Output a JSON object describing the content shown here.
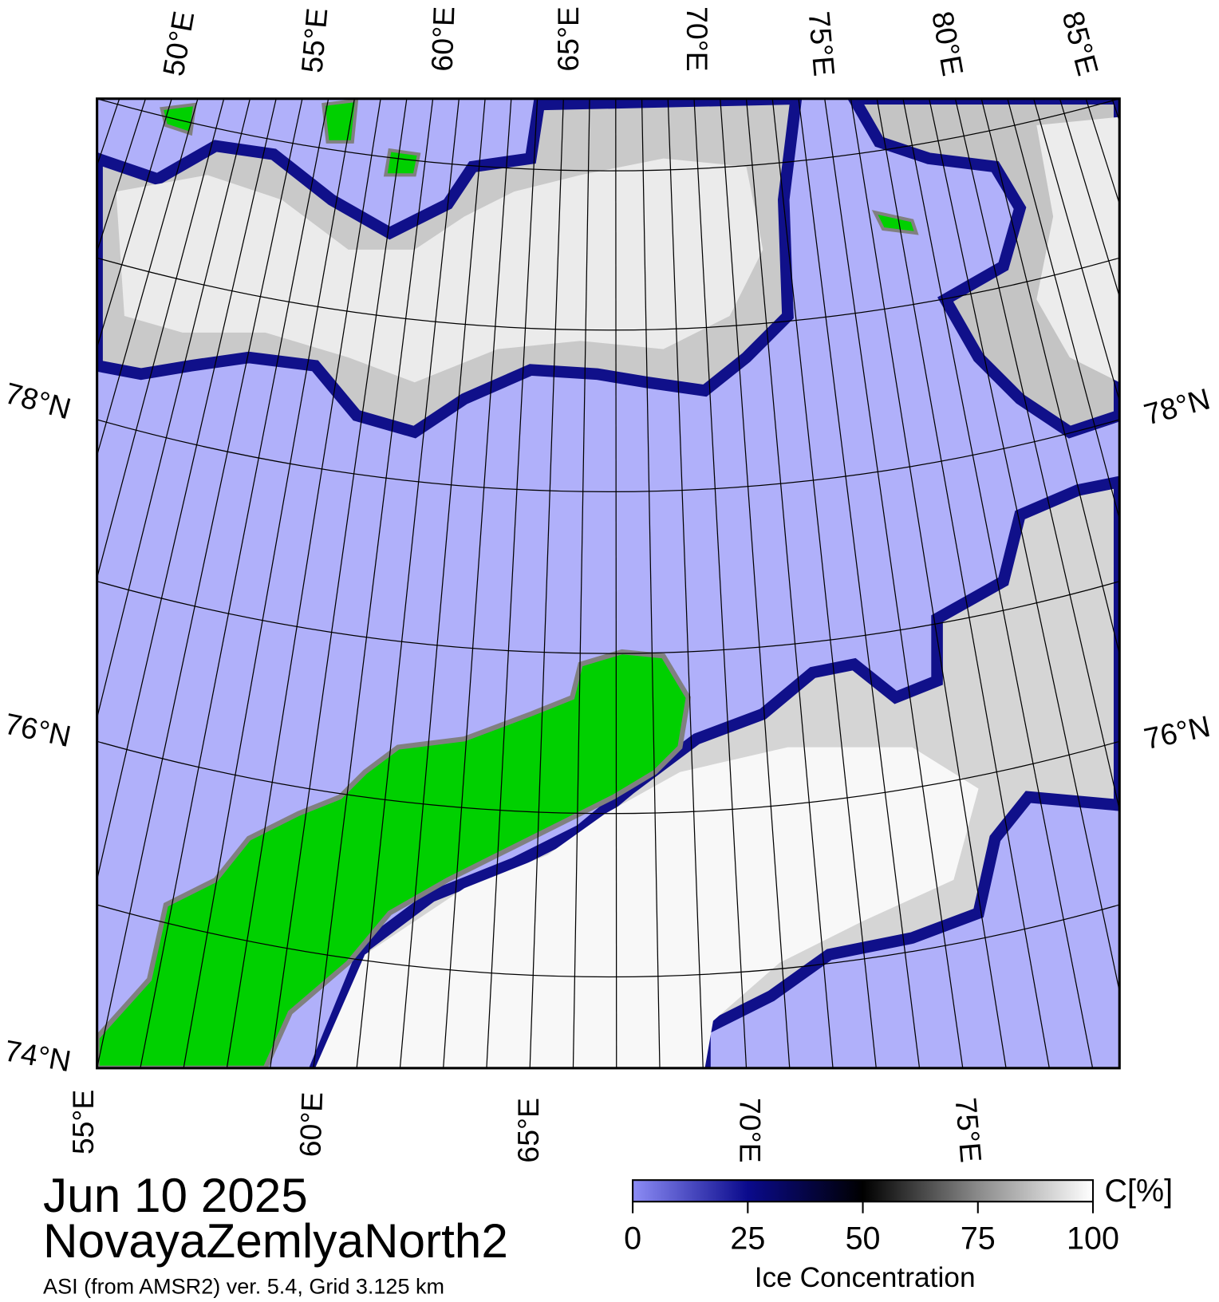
{
  "map": {
    "top_lon_labels": [
      "50°E",
      "55°E",
      "60°E",
      "65°E",
      "70°E",
      "75°E",
      "80°E",
      "85°E"
    ],
    "bottom_lon_labels": [
      "55°E",
      "60°E",
      "65°E",
      "70°E",
      "75°E"
    ],
    "left_lat_labels": [
      "78°N",
      "76°N",
      "74°N"
    ],
    "right_lat_labels": [
      "78°N",
      "76°N"
    ]
  },
  "date": "Jun 10 2025",
  "region": "NovayaZemlyaNorth2",
  "source": "ASI (from AMSR2) ver. 5.4,  Grid 3.125 km",
  "colorbar": {
    "unit": "C[%]",
    "label": "Ice Concentration",
    "range": [
      0,
      100
    ],
    "ticks": [
      0,
      25,
      50,
      75,
      100
    ]
  }
}
